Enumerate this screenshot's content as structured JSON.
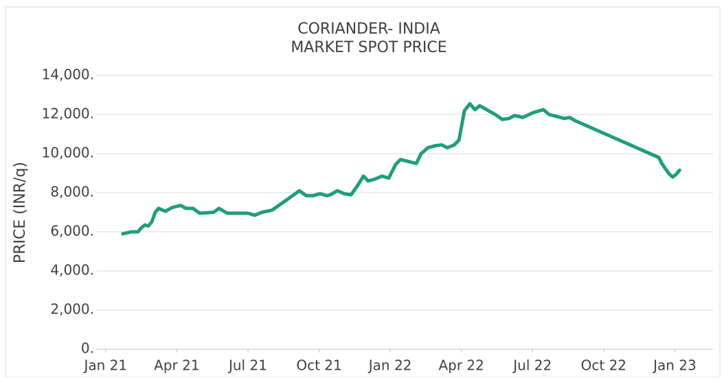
{
  "chart_data": {
    "type": "line",
    "title": "CORIANDER- INDIA",
    "subtitle": "MARKET SPOT PRICE",
    "y_label": "PRICE (INR/q)",
    "xlim": [
      -0.4,
      25.9
    ],
    "xticks": [
      {
        "value": 0,
        "label": "Jan 21"
      },
      {
        "value": 3,
        "label": "Apr 21"
      },
      {
        "value": 6,
        "label": "Jul 21"
      },
      {
        "value": 9,
        "label": "Oct 21"
      },
      {
        "value": 12,
        "label": "Jan 22"
      },
      {
        "value": 15,
        "label": "Apr 22"
      },
      {
        "value": 18,
        "label": "Jul 22"
      },
      {
        "value": 21,
        "label": "Oct 22"
      },
      {
        "value": 24,
        "label": "Jan 23"
      }
    ],
    "ylim": [
      0,
      14000
    ],
    "yticks": [
      {
        "value": 0,
        "label": "0."
      },
      {
        "value": 2000,
        "label": "2,000."
      },
      {
        "value": 4000,
        "label": "4,000."
      },
      {
        "value": 6000,
        "label": "6,000."
      },
      {
        "value": 8000,
        "label": "8,000."
      },
      {
        "value": 10000,
        "label": "10,000."
      },
      {
        "value": 12000,
        "label": "12,000."
      },
      {
        "value": 14000,
        "label": "14,000."
      }
    ],
    "grid": true,
    "series": [
      {
        "color": "#1f9e7a",
        "x": [
          0.72,
          1.07,
          1.36,
          1.5,
          1.65,
          1.8,
          1.94,
          2.09,
          2.23,
          2.52,
          2.81,
          3.16,
          3.39,
          3.68,
          3.97,
          4.55,
          4.78,
          5.13,
          5.57,
          6.0,
          6.29,
          6.58,
          7.01,
          7.59,
          8.17,
          8.46,
          8.75,
          9.04,
          9.33,
          9.48,
          9.77,
          10.06,
          10.35,
          10.64,
          10.87,
          11.07,
          11.36,
          11.65,
          11.94,
          12.23,
          12.43,
          13.1,
          13.3,
          13.59,
          13.88,
          14.17,
          14.41,
          14.7,
          14.9,
          15.13,
          15.36,
          15.57,
          15.77,
          16.14,
          16.43,
          16.72,
          17.01,
          17.25,
          17.59,
          18.03,
          18.46,
          18.7,
          19.04,
          19.33,
          19.57,
          19.77,
          23.33,
          23.45,
          23.62,
          23.77,
          23.91,
          24.06,
          24.2
        ],
        "values": [
          5900,
          6000,
          6000,
          6200,
          6350,
          6300,
          6500,
          7000,
          7200,
          7050,
          7250,
          7350,
          7200,
          7200,
          6950,
          7000,
          7200,
          6950,
          6950,
          6950,
          6850,
          7000,
          7100,
          7600,
          8100,
          7850,
          7850,
          7950,
          7850,
          7900,
          8100,
          7950,
          7900,
          8400,
          8850,
          8600,
          8700,
          8850,
          8750,
          9450,
          9700,
          9500,
          10000,
          10300,
          10400,
          10450,
          10300,
          10450,
          10700,
          12200,
          12550,
          12250,
          12450,
          12200,
          12000,
          11750,
          11800,
          11950,
          11850,
          12100,
          12250,
          12000,
          11900,
          11800,
          11850,
          11700,
          9800,
          9500,
          9200,
          8950,
          8800,
          8950,
          9150
        ]
      }
    ]
  }
}
